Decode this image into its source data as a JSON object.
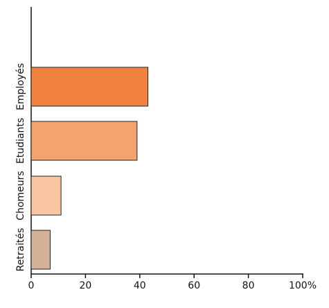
{
  "chart_data": {
    "type": "barh",
    "categories": [
      "Employés",
      "Etudiants",
      "Chomeurs",
      "Retraités"
    ],
    "values": [
      43,
      39,
      11,
      7
    ],
    "colors": [
      "#f0813f",
      "#f4a36f",
      "#f8c6a0",
      "#d5b197"
    ],
    "xlim": [
      0,
      100
    ],
    "xticks": [
      0,
      20,
      40,
      60,
      80,
      {
        "value": 100,
        "label": "100%"
      }
    ]
  }
}
